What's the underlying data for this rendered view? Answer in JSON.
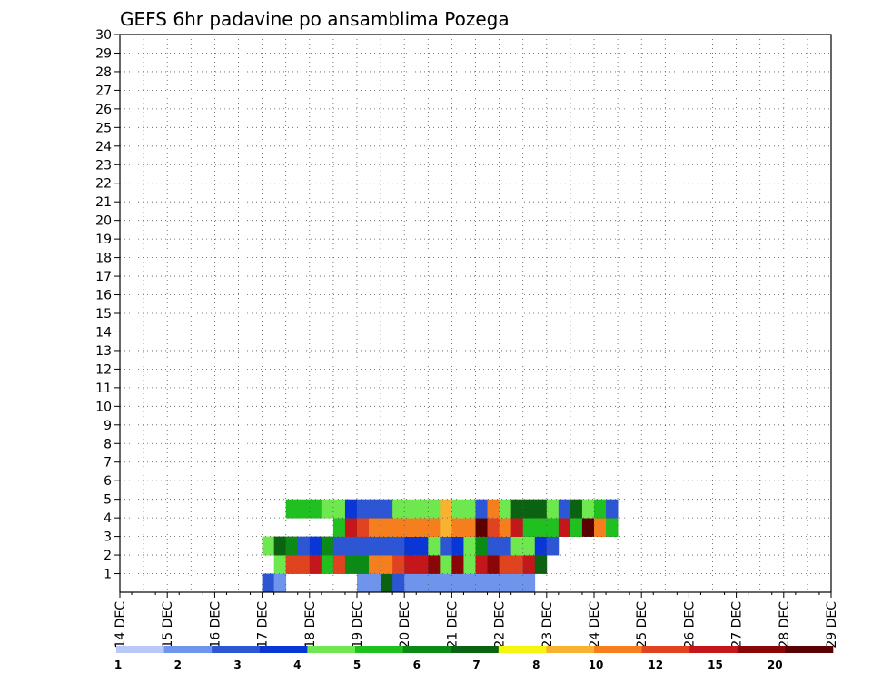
{
  "chart_data": {
    "type": "heatmap",
    "title": "GEFS 6hr padavine po ansamblima Pozega",
    "x_tick_labels": [
      "14 DEC",
      "15 DEC",
      "16 DEC",
      "17 DEC",
      "18 DEC",
      "19 DEC",
      "20 DEC",
      "21 DEC",
      "22 DEC",
      "23 DEC",
      "24 DEC",
      "25 DEC",
      "26 DEC",
      "27 DEC",
      "28 DEC",
      "29 DEC"
    ],
    "y_tick_labels": [
      "1",
      "2",
      "3",
      "4",
      "5",
      "6",
      "7",
      "8",
      "9",
      "10",
      "11",
      "12",
      "13",
      "14",
      "15",
      "16",
      "17",
      "18",
      "19",
      "20",
      "21",
      "22",
      "23",
      "24",
      "25",
      "26",
      "27",
      "28",
      "29",
      "30"
    ],
    "x_range_days": [
      14,
      29
    ],
    "y_range_members": [
      0,
      30
    ],
    "grid": "dotted",
    "colorbar": {
      "levels": [
        "1",
        "2",
        "3",
        "4",
        "5",
        "6",
        "7",
        "8",
        "10",
        "12",
        "15",
        "20"
      ],
      "colors": [
        "#b9c8f6",
        "#6f94ec",
        "#2c56d4",
        "#0a36d6",
        "#6fe84f",
        "#20c020",
        "#0c8a16",
        "#0b6312",
        "#f5f50d",
        "#f7b232",
        "#f57e1e",
        "#e0431f",
        "#c4171b",
        "#8b0606",
        "#5a0202"
      ]
    },
    "cells": [
      [
        0,
        0,
        2
      ],
      [
        0,
        1,
        1
      ],
      [
        0,
        8,
        1
      ],
      [
        0,
        9,
        1
      ],
      [
        0,
        10,
        7
      ],
      [
        0,
        11,
        2
      ],
      [
        0,
        12,
        1
      ],
      [
        0,
        13,
        1
      ],
      [
        0,
        14,
        1
      ],
      [
        0,
        15,
        1
      ],
      [
        0,
        16,
        1
      ],
      [
        0,
        17,
        1
      ],
      [
        0,
        18,
        1
      ],
      [
        0,
        19,
        1
      ],
      [
        0,
        20,
        1
      ],
      [
        0,
        21,
        1
      ],
      [
        0,
        22,
        1
      ],
      [
        1,
        1,
        4
      ],
      [
        1,
        2,
        11
      ],
      [
        1,
        3,
        11
      ],
      [
        1,
        4,
        12
      ],
      [
        1,
        5,
        5
      ],
      [
        1,
        6,
        11
      ],
      [
        1,
        7,
        6
      ],
      [
        1,
        8,
        6
      ],
      [
        1,
        9,
        10
      ],
      [
        1,
        10,
        10
      ],
      [
        1,
        11,
        11
      ],
      [
        1,
        12,
        12
      ],
      [
        1,
        13,
        12
      ],
      [
        1,
        14,
        13
      ],
      [
        1,
        15,
        4
      ],
      [
        1,
        16,
        13
      ],
      [
        1,
        17,
        4
      ],
      [
        1,
        18,
        12
      ],
      [
        1,
        19,
        13
      ],
      [
        1,
        20,
        11
      ],
      [
        1,
        21,
        11
      ],
      [
        1,
        22,
        12
      ],
      [
        1,
        23,
        7
      ],
      [
        2,
        0,
        4
      ],
      [
        2,
        1,
        7
      ],
      [
        2,
        2,
        6
      ],
      [
        2,
        3,
        2
      ],
      [
        2,
        4,
        3
      ],
      [
        2,
        5,
        6
      ],
      [
        2,
        6,
        2
      ],
      [
        2,
        7,
        2
      ],
      [
        2,
        8,
        2
      ],
      [
        2,
        9,
        2
      ],
      [
        2,
        10,
        2
      ],
      [
        2,
        11,
        2
      ],
      [
        2,
        12,
        3
      ],
      [
        2,
        13,
        3
      ],
      [
        2,
        14,
        4
      ],
      [
        2,
        15,
        2
      ],
      [
        2,
        16,
        3
      ],
      [
        2,
        17,
        4
      ],
      [
        2,
        18,
        6
      ],
      [
        2,
        19,
        2
      ],
      [
        2,
        20,
        2
      ],
      [
        2,
        21,
        4
      ],
      [
        2,
        22,
        4
      ],
      [
        2,
        23,
        3
      ],
      [
        2,
        24,
        2
      ],
      [
        3,
        6,
        5
      ],
      [
        3,
        7,
        12
      ],
      [
        3,
        8,
        11
      ],
      [
        3,
        9,
        10
      ],
      [
        3,
        10,
        10
      ],
      [
        3,
        11,
        10
      ],
      [
        3,
        12,
        10
      ],
      [
        3,
        13,
        10
      ],
      [
        3,
        14,
        10
      ],
      [
        3,
        15,
        9
      ],
      [
        3,
        16,
        10
      ],
      [
        3,
        17,
        10
      ],
      [
        3,
        18,
        14
      ],
      [
        3,
        19,
        11
      ],
      [
        3,
        20,
        10
      ],
      [
        3,
        21,
        12
      ],
      [
        3,
        22,
        5
      ],
      [
        3,
        23,
        5
      ],
      [
        3,
        24,
        5
      ],
      [
        3,
        25,
        12
      ],
      [
        3,
        26,
        5
      ],
      [
        3,
        27,
        14
      ],
      [
        3,
        28,
        10
      ],
      [
        3,
        29,
        5
      ],
      [
        4,
        2,
        5
      ],
      [
        4,
        3,
        5
      ],
      [
        4,
        4,
        5
      ],
      [
        4,
        5,
        4
      ],
      [
        4,
        6,
        4
      ],
      [
        4,
        7,
        3
      ],
      [
        4,
        8,
        2
      ],
      [
        4,
        9,
        2
      ],
      [
        4,
        10,
        2
      ],
      [
        4,
        11,
        4
      ],
      [
        4,
        12,
        4
      ],
      [
        4,
        13,
        4
      ],
      [
        4,
        14,
        4
      ],
      [
        4,
        15,
        9
      ],
      [
        4,
        16,
        4
      ],
      [
        4,
        17,
        4
      ],
      [
        4,
        18,
        2
      ],
      [
        4,
        19,
        10
      ],
      [
        4,
        20,
        4
      ],
      [
        4,
        21,
        7
      ],
      [
        4,
        22,
        7
      ],
      [
        4,
        23,
        7
      ],
      [
        4,
        24,
        4
      ],
      [
        4,
        25,
        2
      ],
      [
        4,
        26,
        7
      ],
      [
        4,
        27,
        4
      ],
      [
        4,
        28,
        5
      ],
      [
        4,
        29,
        2
      ]
    ]
  }
}
